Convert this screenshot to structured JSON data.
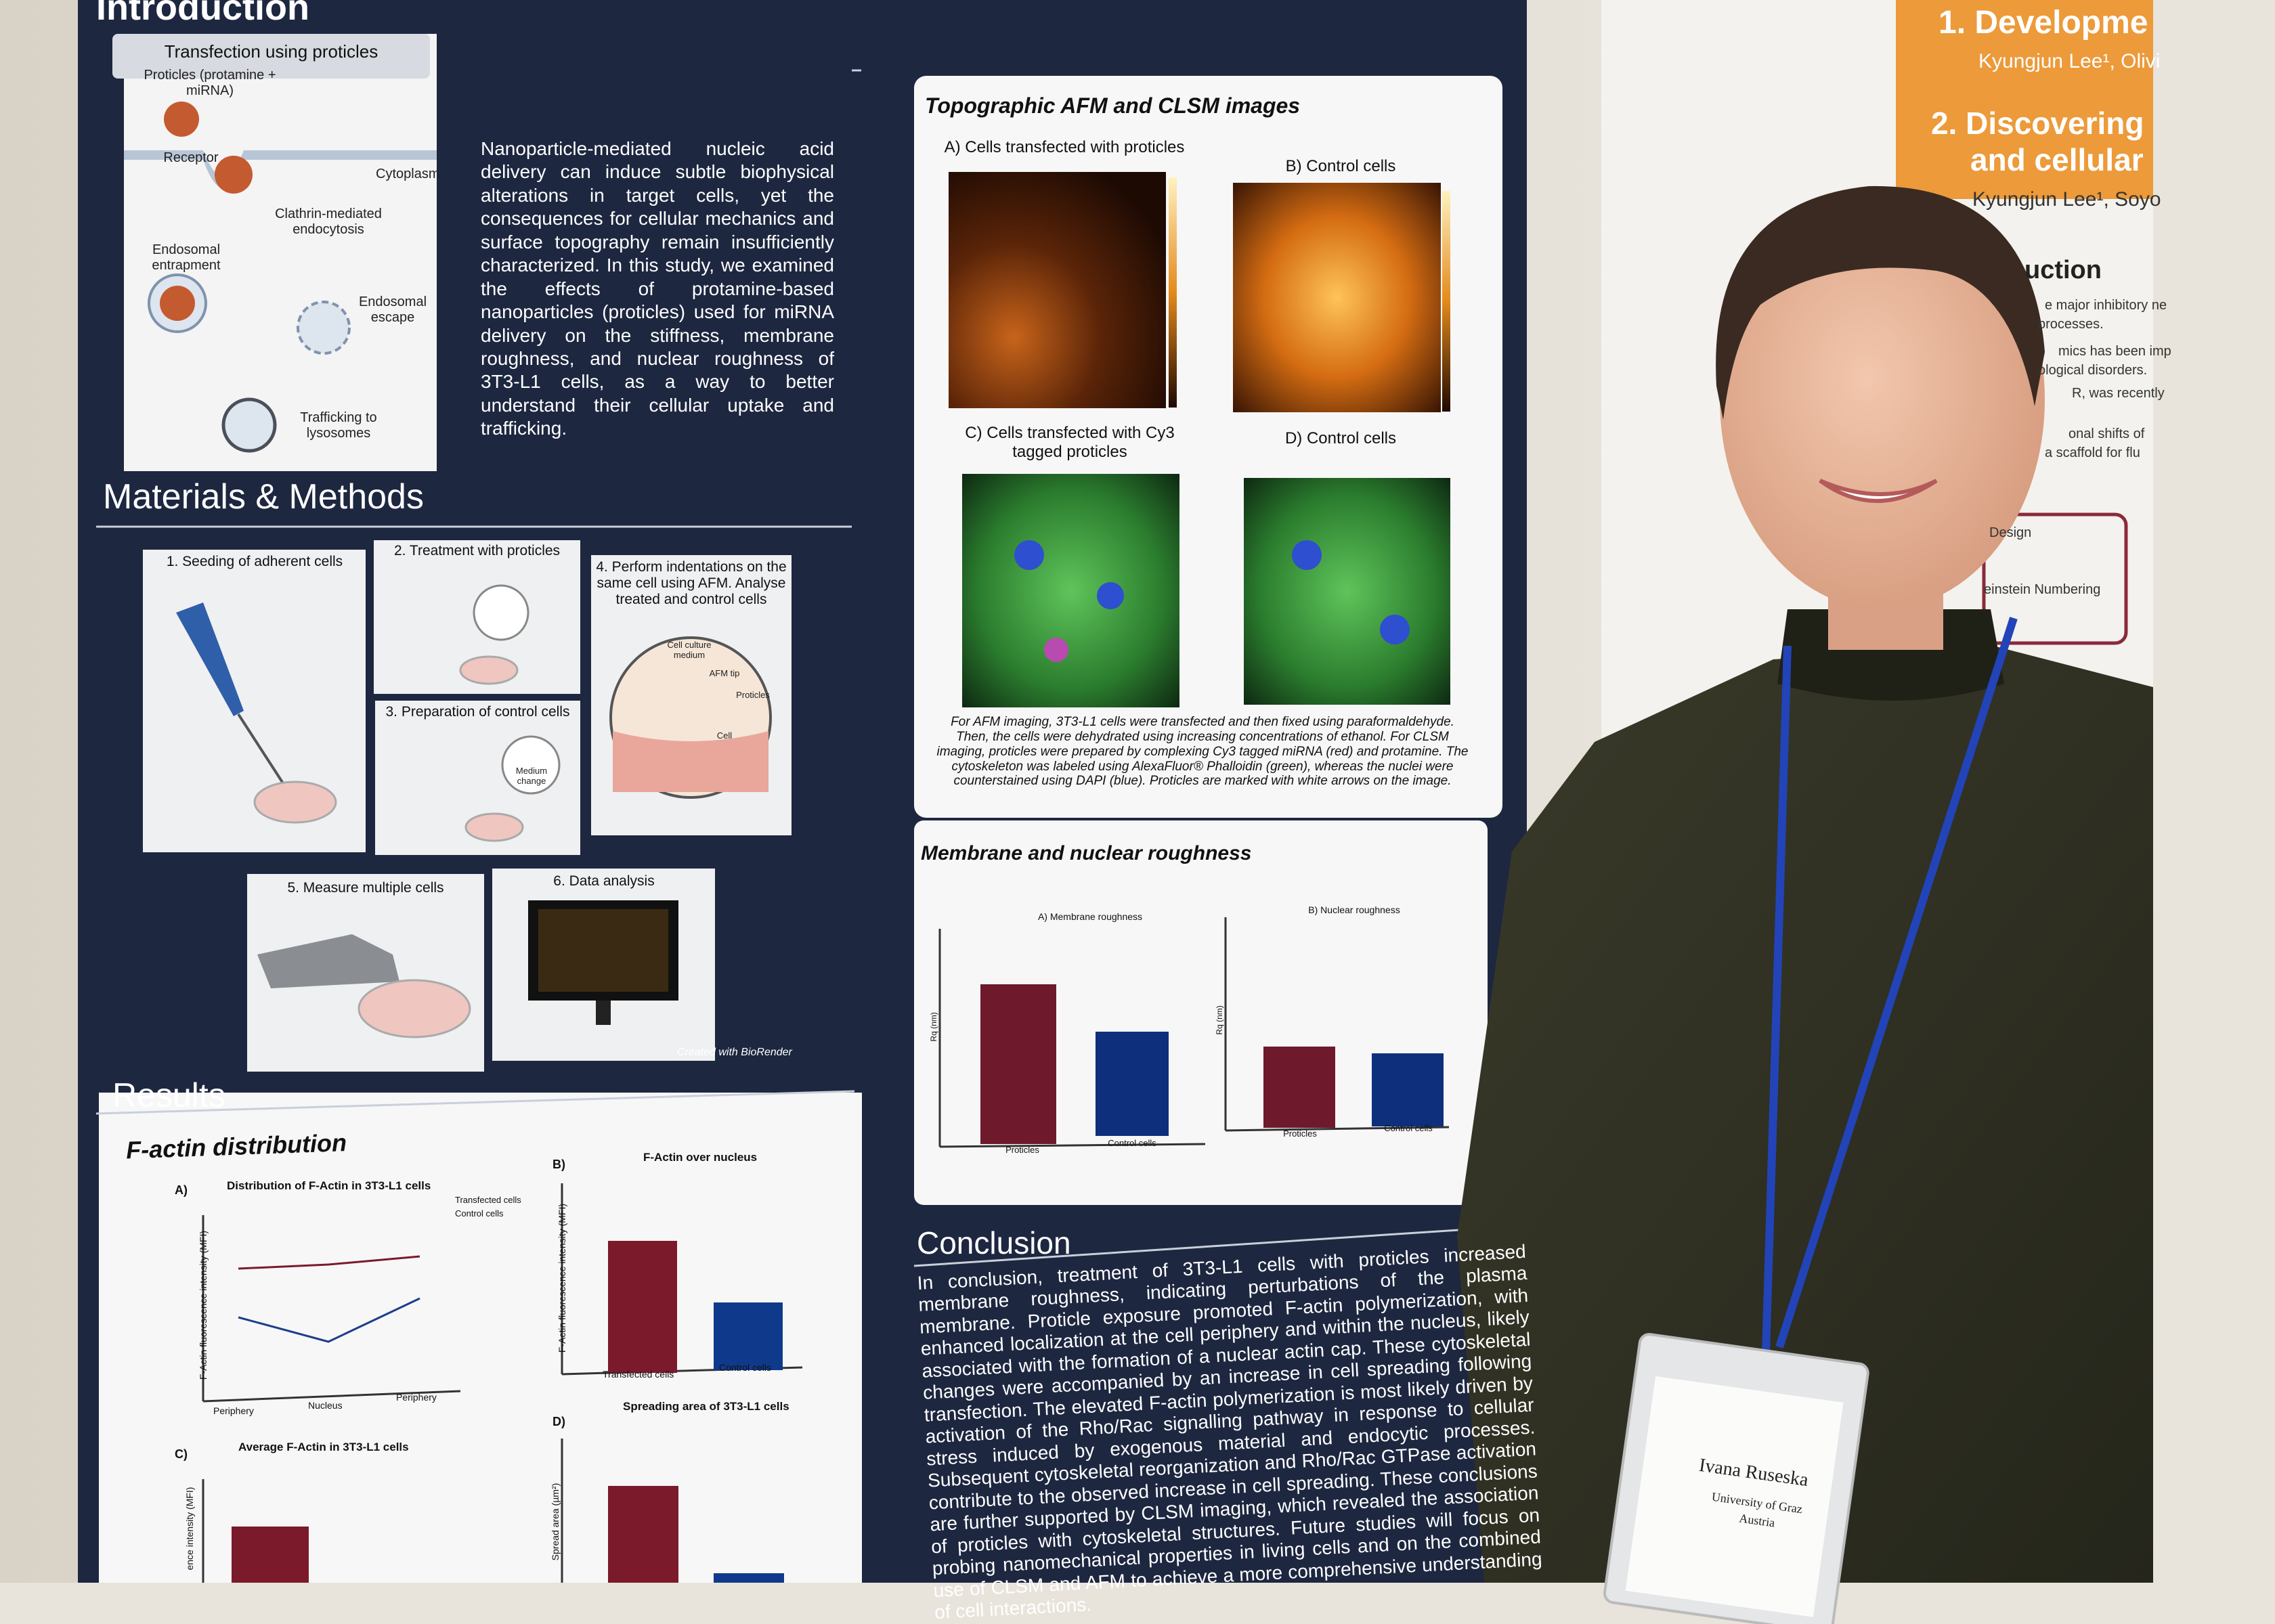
{
  "poster": {
    "introduction": {
      "title": "Introduction",
      "figure_title": "Transfection using proticles",
      "figure_labels": [
        "Proticles (protamine + miRNA)",
        "Receptor",
        "Cytoplasm",
        "Clathrin-mediated endocytosis",
        "Endosomal entrapment",
        "Endosomal escape",
        "Trafficking to lysosomes"
      ],
      "text": "Nanoparticle-mediated nucleic acid delivery can induce subtle biophysical alterations in target cells, yet the consequences for cellular mechanics and surface topography remain insufficiently characterized. In this study, we examined the effects of protamine-based nanoparticles (proticles) used for miRNA delivery on the stiffness, membrane roughness, and nuclear roughness of 3T3-L1 cells, as a way to better understand their cellular uptake and trafficking."
    },
    "methods": {
      "title": "Materials & Methods",
      "steps": [
        "1. Seeding of adherent cells",
        "2. Treatment with proticles",
        "3. Preparation of control cells",
        "4. Perform indentations on the same cell using AFM. Analyse treated and control cells",
        "5. Measure multiple cells",
        "6. Data analysis"
      ],
      "inset_labels": [
        "Cell culture medium",
        "AFM tip",
        "Proticles",
        "Cell",
        "Medium change"
      ],
      "credit": "Created with BioRender"
    },
    "results": {
      "title": "Results",
      "panel_title": "F-actin distribution",
      "charts": [
        {
          "letter": "A)",
          "title": "Distribution of F-Actin in 3T3-L1 cells",
          "legend": [
            "Transfected cells",
            "Control cells"
          ],
          "categories": [
            "Periphery",
            "Nucleus",
            "Periphery"
          ],
          "y_label": "F-Actin fluorescence intensity (MFI)"
        },
        {
          "letter": "B)",
          "title": "F-Actin over nucleus",
          "categories": [
            "Transfected cells",
            "Control cells"
          ],
          "y_label": "F-Actin fluorescence intensity (MFI)"
        },
        {
          "letter": "C)",
          "title": "Average F-Actin in 3T3-L1 cells",
          "y_label": "ence intensity (MFI)"
        },
        {
          "letter": "D)",
          "title": "Spreading area of 3T3-L1 cells",
          "y_label": "Spread area (µm²)"
        }
      ]
    },
    "imaging": {
      "title": "Topographic AFM and CLSM images",
      "labels": [
        "A) Cells transfected with proticles",
        "B) Control cells",
        "C) Cells transfected with Cy3 tagged proticles",
        "D) Control cells"
      ],
      "caption": "For AFM imaging, 3T3-L1 cells were transfected and then fixed using paraformaldehyde. Then, the cells were dehydrated using increasing concentrations of ethanol. For CLSM imaging, proticles were prepared by complexing Cy3 tagged miRNA (red) and protamine. The cytoskeleton was labeled using AlexaFluor® Phalloidin (green), whereas the nuclei were counterstained using DAPI (blue). Proticles are marked with white arrows on the image."
    },
    "roughness": {
      "title": "Membrane and nuclear roughness",
      "charts": [
        {
          "title": "A) Membrane roughness",
          "y_label": "Rq (nm)",
          "categories": [
            "Proticles",
            "Control cells"
          ]
        },
        {
          "title": "B) Nuclear roughness",
          "y_label": "Rq (nm)",
          "categories": [
            "Proticles",
            "Control cells"
          ]
        }
      ]
    },
    "conclusion": {
      "title": "Conclusion",
      "text": "In conclusion, treatment of 3T3-L1 cells with proticles increased membrane roughness, indicating perturbations of the plasma membrane. Proticle exposure promoted F-actin polymerization, with enhanced localization at the cell periphery and within the nucleus, likely associated with the formation of a nuclear actin cap. These cytoskeletal changes were accompanied by an increase in cell spreading following transfection. The elevated F-actin polymerization is most likely driven by activation of the Rho/Rac signalling pathway in response to cellular stress induced by exogenous material and endocytic processes. Subsequent cytoskeletal reorganization and Rho/Rac GTPase activation contribute to the observed increase in cell spreading. These conclusions are further supported by CLSM imaging, which revealed the association of proticles with cytoskeletal structures. Future studies will focus on probing nanomechanical properties in living cells and on the combined use of CLSM and AFM to achieve a more comprehensive understanding of cell interactions."
    }
  },
  "side_poster": {
    "header_lines": [
      "1. Developme",
      "Kyungjun Lee¹, Olivi",
      "2. Discovering",
      "and cellular",
      "Kyungjun Lee¹, Soyo"
    ],
    "section_title": "uction",
    "fragments": [
      "e major inhibitory ne",
      "processes.",
      "mics has been imp",
      "ological disorders.",
      "R, was recently",
      "onal shifts of",
      "a scaffold for flu",
      "Design",
      "einstein Numbering"
    ]
  },
  "badge": {
    "name": "Ivana Ruseska",
    "affiliation": "University of Graz",
    "country": "Austria"
  }
}
